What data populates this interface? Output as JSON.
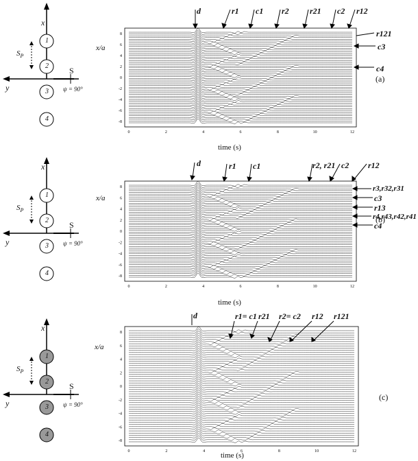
{
  "panels": [
    {
      "tag": "(a)",
      "circle_labels": [
        "1",
        "2",
        "3",
        "4"
      ],
      "filled": false,
      "axis_x": "x",
      "axis_y": "y",
      "source": "S",
      "psi": "ψ = 90°",
      "sp": "S",
      "sp_sub": "P",
      "ylabel": "x/a",
      "xlabel": "time (s)",
      "xticks": [
        "0",
        "2",
        "4",
        "6",
        "8",
        "10",
        "12"
      ],
      "yticks": [
        "8",
        "6",
        "4",
        "2",
        "0",
        "-2",
        "-4",
        "-6",
        "-8"
      ],
      "top_labels": [
        "d",
        "r1",
        "c1",
        "r2",
        "r21",
        "c2",
        "r12"
      ],
      "side_labels": [
        "r121",
        "c3",
        "c4"
      ]
    },
    {
      "tag": "(b)",
      "circle_labels": [
        "1",
        "2",
        "3",
        "4"
      ],
      "filled": false,
      "axis_x": "x",
      "axis_y": "y",
      "source": "S",
      "psi": "ψ = 90°",
      "sp": "S",
      "sp_sub": "P",
      "ylabel": "x/a",
      "xlabel": "time (s)",
      "xticks": [
        "0",
        "2",
        "4",
        "6",
        "8",
        "10",
        "12"
      ],
      "yticks": [
        "8",
        "6",
        "4",
        "2",
        "0",
        "-2",
        "-4",
        "-6",
        "-8"
      ],
      "top_labels": [
        "d",
        "r1",
        "c1",
        "r2, r21",
        "c2",
        "r12"
      ],
      "side_labels": [
        "r3,r32,r31",
        "c3",
        "r13",
        "r4,r43,r42,r41",
        "c4"
      ]
    },
    {
      "tag": "(c)",
      "circle_labels": [
        "1",
        "2",
        "3",
        "4"
      ],
      "filled": true,
      "axis_x": "x",
      "axis_y": "y",
      "source": "S",
      "psi": "ψ = 90°",
      "sp": "S",
      "sp_sub": "P",
      "ylabel": "x/a",
      "xlabel": "time (s)",
      "xticks": [
        "0",
        "2",
        "4",
        "6",
        "8",
        "10",
        "12"
      ],
      "yticks": [
        "8",
        "6",
        "4",
        "2",
        "0",
        "-2",
        "-4",
        "-6",
        "-8"
      ],
      "top_labels": [
        "d",
        "r1= c1",
        "r21",
        "r2= c2",
        "r12",
        "r121"
      ],
      "side_labels": []
    }
  ]
}
